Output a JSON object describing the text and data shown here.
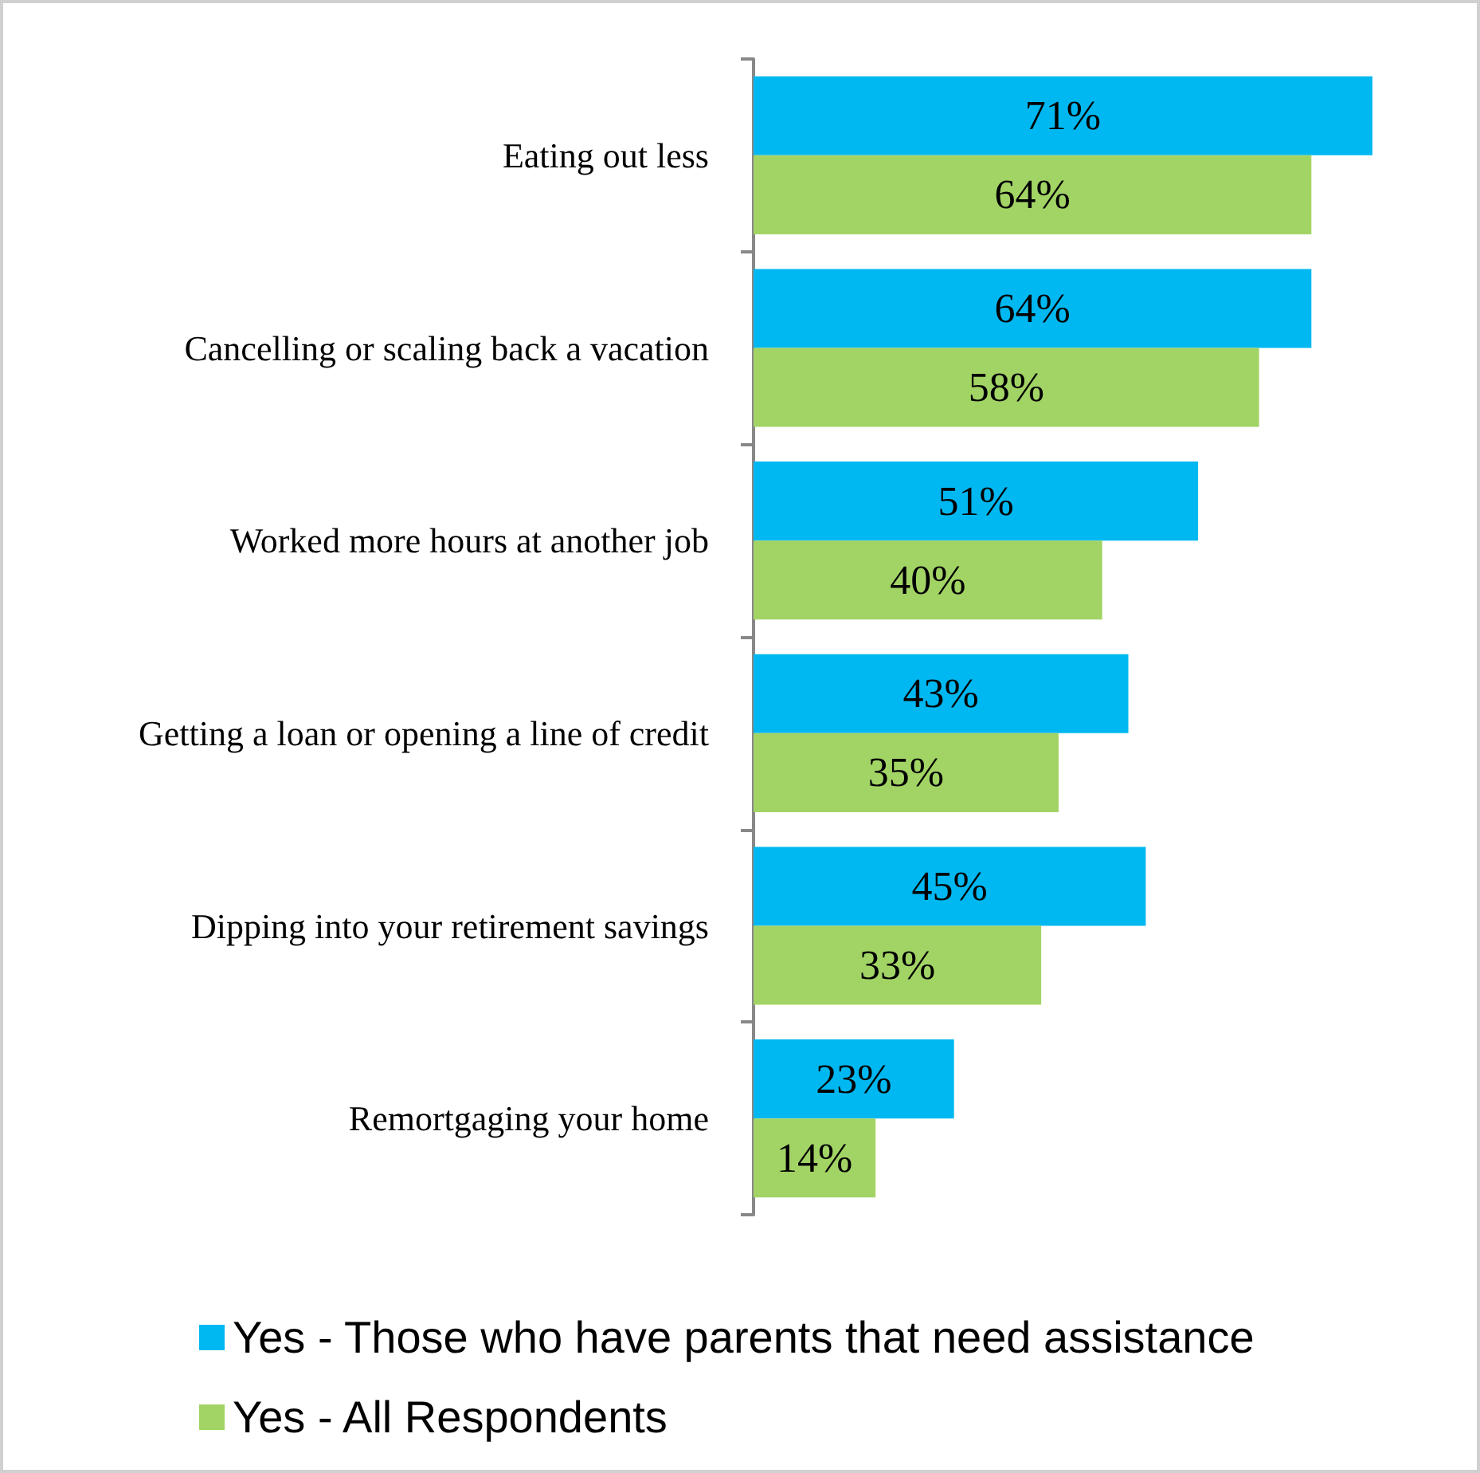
{
  "chart_data": {
    "type": "bar",
    "orientation": "horizontal",
    "categories": [
      "Eating out less",
      "Cancelling or scaling back a vacation",
      "Worked more hours at another job",
      "Getting a loan or opening a line of credit",
      "Dipping into your retirement savings",
      "Remortgaging your home"
    ],
    "series": [
      {
        "name": "Yes - Those who have parents that need assistance",
        "color": "#00b8f1",
        "values": [
          71,
          64,
          51,
          43,
          45,
          23
        ],
        "value_labels": [
          "71%",
          "64%",
          "51%",
          "43%",
          "45%",
          "23%"
        ]
      },
      {
        "name": "Yes - All Respondents",
        "color": "#a2d465",
        "values": [
          64,
          58,
          40,
          35,
          33,
          14
        ],
        "value_labels": [
          "64%",
          "58%",
          "40%",
          "35%",
          "33%",
          "14%"
        ]
      }
    ],
    "legend": "bottom",
    "grid": false
  }
}
